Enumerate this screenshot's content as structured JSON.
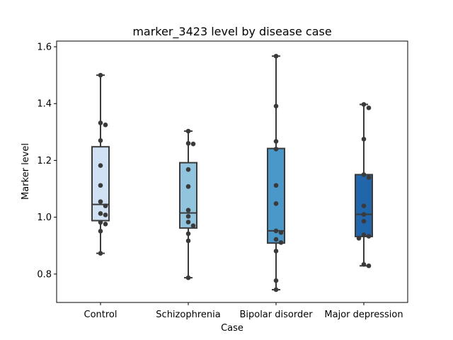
{
  "chart_data": {
    "type": "box",
    "title": "marker_3423 level by disease case",
    "xlabel": "Case",
    "ylabel": "Marker level",
    "ylim": [
      0.7,
      1.62
    ],
    "yticks": [
      0.8,
      1.0,
      1.2,
      1.4,
      1.6
    ],
    "ytick_labels": [
      "0.8",
      "1.0",
      "1.2",
      "1.4",
      "1.6"
    ],
    "grid": false,
    "categories": [
      "Control",
      "Schizophrenia",
      "Bipolar disorder",
      "Major depression"
    ],
    "colors": [
      "#cfe1f2",
      "#93c4de",
      "#4a98c9",
      "#2165ab"
    ],
    "boxes": [
      {
        "whisker_low": 0.873,
        "q1": 0.988,
        "median": 1.045,
        "q3": 1.248,
        "whisker_high": 1.5
      },
      {
        "whisker_low": 0.787,
        "q1": 0.962,
        "median": 1.015,
        "q3": 1.192,
        "whisker_high": 1.303
      },
      {
        "whisker_low": 0.745,
        "q1": 0.909,
        "median": 0.952,
        "q3": 1.242,
        "whisker_high": 1.567
      },
      {
        "whisker_low": 0.829,
        "q1": 0.932,
        "median": 1.01,
        "q3": 1.15,
        "whisker_high": 1.397
      }
    ],
    "points": [
      [
        1.5,
        1.332,
        1.325,
        1.27,
        1.182,
        1.112,
        1.055,
        1.04,
        1.013,
        1.008,
        0.982,
        0.976,
        0.951,
        0.873
      ],
      [
        1.303,
        1.26,
        1.258,
        1.168,
        1.108,
        1.025,
        1.003,
        0.983,
        0.97,
        0.942,
        0.917,
        0.787
      ],
      [
        1.567,
        1.391,
        1.267,
        1.24,
        1.112,
        1.048,
        0.952,
        0.946,
        0.922,
        0.911,
        0.881,
        0.777,
        0.745
      ],
      [
        1.397,
        1.385,
        1.275,
        1.15,
        1.14,
        1.04,
        1.01,
        0.986,
        0.938,
        0.933,
        0.926,
        0.834,
        0.829
      ]
    ]
  }
}
